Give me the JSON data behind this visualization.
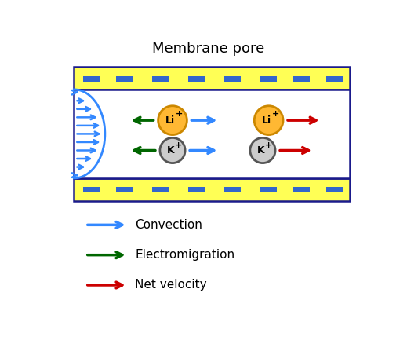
{
  "title": "Membrane pore",
  "title_fontsize": 13,
  "bg_color": "#ffffff",
  "membrane_color": "#ffff55",
  "membrane_border_color": "#1a1a8c",
  "pore_bg": "#ffffff",
  "dash_color": "#3366cc",
  "li_fill": "#ffb833",
  "li_border": "#cc8800",
  "k_fill": "#cccccc",
  "k_border": "#555555",
  "blue_arrow": "#3388ff",
  "green_arrow": "#006600",
  "red_arrow": "#cc0000",
  "legend_items": [
    "Convection",
    "Electromigration",
    "Net velocity"
  ],
  "legend_colors": [
    "#3388ff",
    "#006600",
    "#cc0000"
  ],
  "fig_width": 5.19,
  "fig_height": 4.38,
  "dpi": 100
}
